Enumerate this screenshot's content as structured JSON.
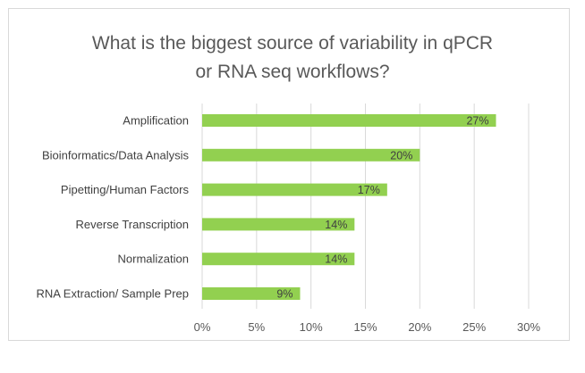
{
  "chart_data": {
    "type": "bar",
    "orientation": "horizontal",
    "title_lines": [
      "What is the biggest source of variability in qPCR",
      "or RNA seq workflows?"
    ],
    "categories": [
      "Amplification",
      "Bioinformatics/Data Analysis",
      "Pipetting/Human Factors",
      "Reverse Transcription",
      "Normalization",
      "RNA Extraction/ Sample Prep"
    ],
    "values": [
      27,
      20,
      17,
      14,
      14,
      9
    ],
    "value_labels": [
      "27%",
      "20%",
      "17%",
      "14%",
      "14%",
      "9%"
    ],
    "x_ticks": [
      "0%",
      "5%",
      "10%",
      "15%",
      "20%",
      "25%",
      "30%"
    ],
    "xlim": [
      0,
      30
    ],
    "xlabel": "",
    "ylabel": "",
    "grid": true,
    "legend": "none",
    "bar_color": "#92d050",
    "grid_color": "#d9d9d9"
  }
}
